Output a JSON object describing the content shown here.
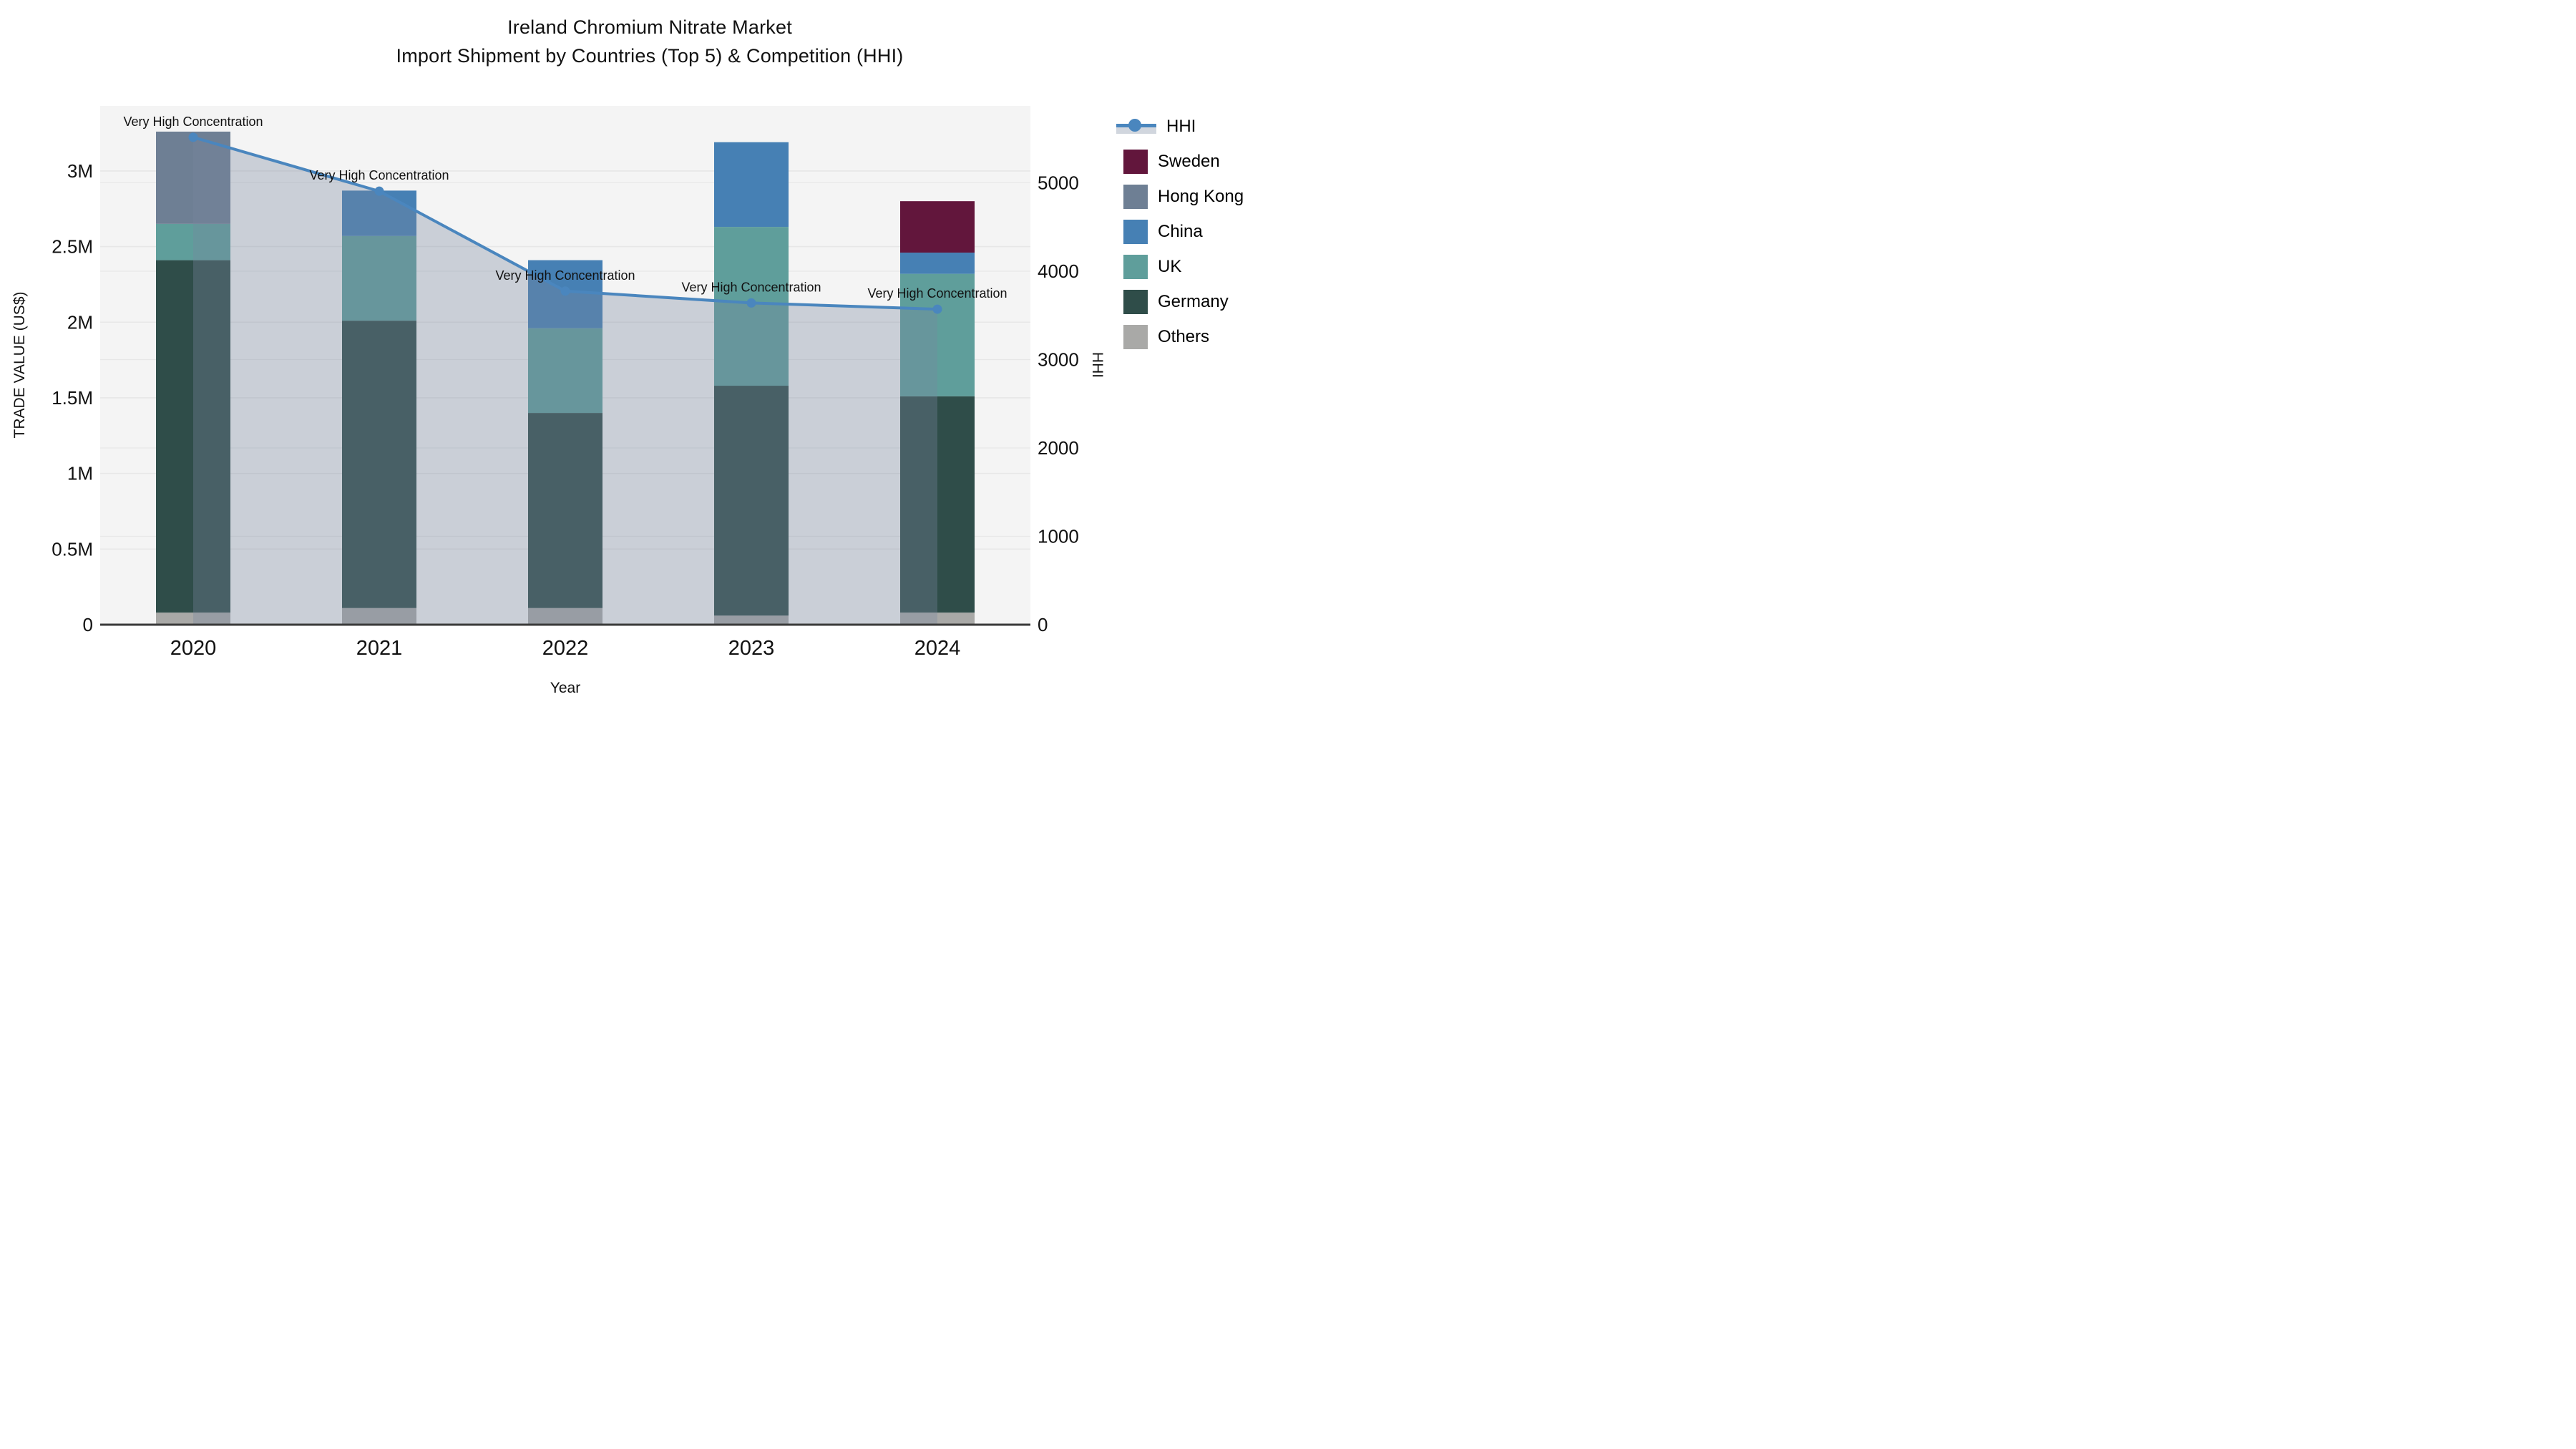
{
  "title": {
    "line1": "Ireland Chromium Nitrate Market",
    "line2": "Import Shipment by Countries (Top 5) & Competition (HHI)"
  },
  "axes": {
    "x": {
      "label": "Year",
      "categories": [
        "2020",
        "2021",
        "2022",
        "2023",
        "2024"
      ]
    },
    "y_left": {
      "label": "TRADE VALUE (US$)",
      "tick_labels": [
        "0",
        "0.5M",
        "1M",
        "1.5M",
        "2M",
        "2.5M",
        "3M"
      ],
      "tick_values": [
        0,
        0.5,
        1,
        1.5,
        2,
        2.5,
        3
      ],
      "max": 3.43
    },
    "y_right": {
      "label": "HHI",
      "tick_labels": [
        "0",
        "1000",
        "2000",
        "3000",
        "4000",
        "5000"
      ],
      "tick_values": [
        0,
        1000,
        2000,
        3000,
        4000,
        5000
      ],
      "max": 5870
    }
  },
  "legend": {
    "items": [
      {
        "label": "HHI",
        "type": "line"
      },
      {
        "label": "Sweden",
        "type": "swatch",
        "color": "#62163c"
      },
      {
        "label": "Hong Kong",
        "type": "swatch",
        "color": "#6e7f94"
      },
      {
        "label": "China",
        "type": "swatch",
        "color": "#4680b4"
      },
      {
        "label": "UK",
        "type": "swatch",
        "color": "#5f9e9b"
      },
      {
        "label": "Germany",
        "type": "swatch",
        "color": "#2f4d49"
      },
      {
        "label": "Others",
        "type": "swatch",
        "color": "#a9a9a7"
      }
    ]
  },
  "colors": {
    "plot_bg": "#f4f4f4",
    "grid": "#e7e7e7",
    "axis_line": "#3a3a3a",
    "hhi_line": "#4a86be",
    "hhi_area": "rgba(119,136,158,0.34)",
    "annotation_text": "#111111"
  },
  "chart_data": {
    "type": "bar+line",
    "title": "Ireland Chromium Nitrate Market — Import Shipment by Countries (Top 5) & Competition (HHI)",
    "categories": [
      "2020",
      "2021",
      "2022",
      "2023",
      "2024"
    ],
    "bar_value_unit": "million US$",
    "stack_order_bottom_to_top": [
      "Others",
      "Germany",
      "UK",
      "China",
      "Hong Kong",
      "Sweden"
    ],
    "series": [
      {
        "name": "Others",
        "color": "#a9a9a7",
        "values": [
          0.08,
          0.11,
          0.11,
          0.06,
          0.08
        ]
      },
      {
        "name": "Germany",
        "color": "#2f4d49",
        "values": [
          2.33,
          1.9,
          1.29,
          1.52,
          1.43
        ]
      },
      {
        "name": "UK",
        "color": "#5f9e9b",
        "values": [
          0.24,
          0.56,
          0.56,
          1.05,
          0.81
        ]
      },
      {
        "name": "China",
        "color": "#4680b4",
        "values": [
          0.0,
          0.3,
          0.45,
          0.56,
          0.14
        ]
      },
      {
        "name": "Hong Kong",
        "color": "#6e7f94",
        "values": [
          0.61,
          0.0,
          0.0,
          0.0,
          0.0
        ]
      },
      {
        "name": "Sweden",
        "color": "#62163c",
        "values": [
          0.0,
          0.0,
          0.0,
          0.0,
          0.34
        ]
      }
    ],
    "bar_totals": [
      3.26,
      2.87,
      2.41,
      3.19,
      2.8
    ],
    "line_series": {
      "name": "HHI",
      "axis": "right",
      "values": [
        5515,
        4905,
        3775,
        3640,
        3570
      ],
      "area_fill": true
    },
    "annotations": [
      {
        "text": "Very High Concentration",
        "category": "2020"
      },
      {
        "text": "Very High Concentration",
        "category": "2021"
      },
      {
        "text": "Very High Concentration",
        "category": "2022"
      },
      {
        "text": "Very High Concentration",
        "category": "2023"
      },
      {
        "text": "Very High Concentration",
        "category": "2024"
      }
    ],
    "xlabel": "Year",
    "ylabel_left": "TRADE VALUE (US$)",
    "ylabel_right": "HHI",
    "ylim_left": [
      0,
      3.43
    ],
    "ylim_right": [
      0,
      5870
    ],
    "grid": true,
    "legend_position": "right"
  }
}
